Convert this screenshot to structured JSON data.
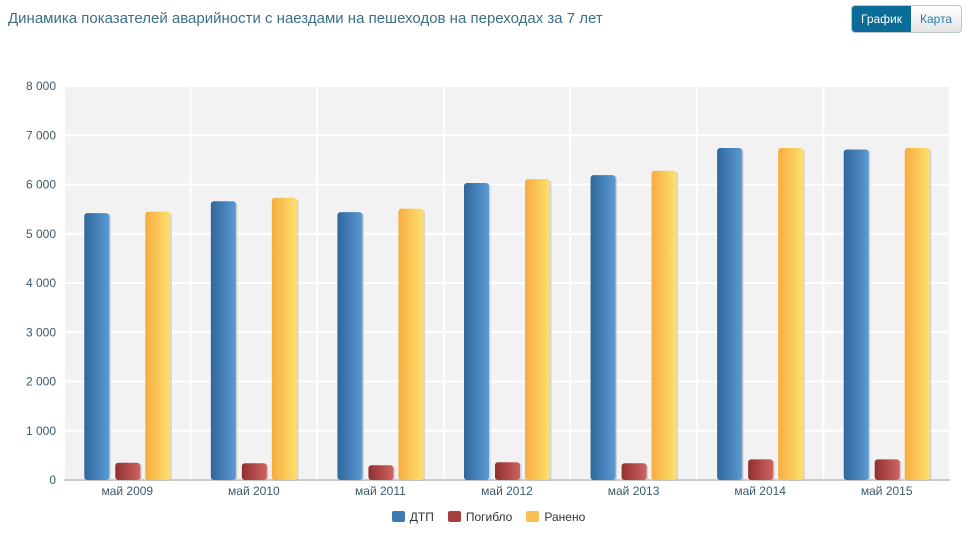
{
  "title": "Динамика показателей аварийности с наездами на пешеходов на переходах за 7 лет",
  "view_toggle": {
    "chart_label": "График",
    "map_label": "Карта",
    "active": "chart"
  },
  "chart_data": {
    "type": "bar",
    "categories": [
      "май 2009",
      "май 2010",
      "май 2011",
      "май 2012",
      "май 2013",
      "май 2014",
      "май 2015"
    ],
    "series": [
      {
        "name": "ДТП",
        "color": "#3d7ab5",
        "values": [
          5420,
          5660,
          5440,
          6030,
          6190,
          6740,
          6710
        ]
      },
      {
        "name": "Погибло",
        "color": "#a83f3f",
        "values": [
          350,
          340,
          300,
          360,
          340,
          420,
          420
        ]
      },
      {
        "name": "Ранено",
        "color": "#f8c052",
        "values": [
          5450,
          5730,
          5510,
          6110,
          6280,
          6740,
          6740
        ]
      }
    ],
    "ylim": [
      0,
      8000
    ],
    "yticks": [
      "0",
      "1 000",
      "2 000",
      "3 000",
      "4 000",
      "5 000",
      "6 000",
      "7 000",
      "8 000"
    ],
    "grid": true,
    "legend": "bottom"
  }
}
